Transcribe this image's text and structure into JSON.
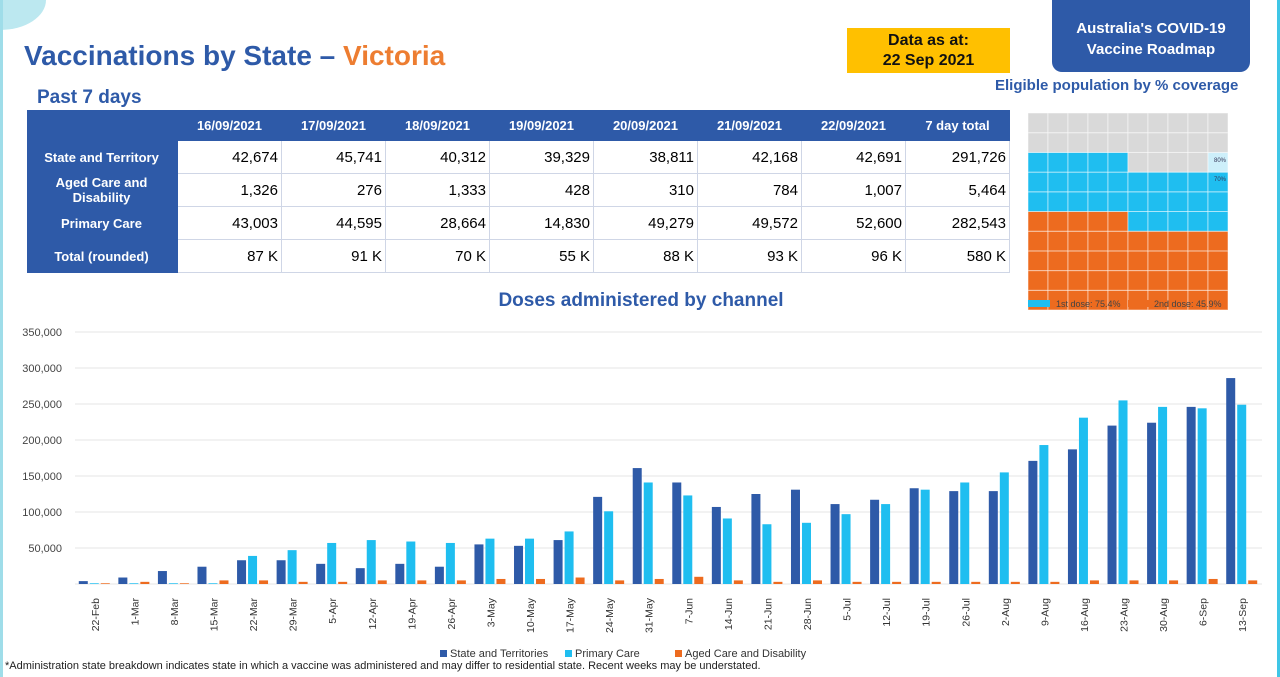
{
  "header": {
    "title_prefix": "Vaccinations by State – ",
    "title_state": "Victoria",
    "subtitle": "Past 7 days",
    "data_as_at_label": "Data as at:",
    "data_as_at_date": "22 Sep 2021",
    "roadmap_line1": "Australia's COVID-19",
    "roadmap_line2": "Vaccine Roadmap"
  },
  "table": {
    "columns": [
      "",
      "16/09/2021",
      "17/09/2021",
      "18/09/2021",
      "19/09/2021",
      "20/09/2021",
      "21/09/2021",
      "22/09/2021",
      "7 day total"
    ],
    "rows": [
      {
        "label": "State and Territory",
        "values": [
          "42,674",
          "45,741",
          "40,312",
          "39,329",
          "38,811",
          "42,168",
          "42,691",
          "291,726"
        ]
      },
      {
        "label": "Aged Care and Disability",
        "values": [
          "1,326",
          "276",
          "1,333",
          "428",
          "310",
          "784",
          "1,007",
          "5,464"
        ]
      },
      {
        "label": "Primary Care",
        "values": [
          "43,003",
          "44,595",
          "28,664",
          "14,830",
          "49,279",
          "49,572",
          "52,600",
          "282,543"
        ]
      },
      {
        "label": "Total (rounded)",
        "values": [
          "87 K",
          "91 K",
          "70 K",
          "55 K",
          "88 K",
          "93 K",
          "96 K",
          "580 K"
        ]
      }
    ]
  },
  "waffle": {
    "title": "Eligible population by % coverage",
    "first_dose_pct": 75.4,
    "second_dose_pct": 45.9,
    "legend": [
      "1st dose: 75.4%",
      "2nd dose: 45.9%"
    ],
    "markers": [
      "80%",
      "70%"
    ],
    "colors": {
      "first": "#1FBEF0",
      "second": "#ED6B1F",
      "empty": "#D9D9D9",
      "marker": "#CDEFFA"
    }
  },
  "chart_data": {
    "type": "bar",
    "title": "Doses administered by channel",
    "xlabel": "",
    "ylabel": "",
    "ylim": [
      0,
      350000
    ],
    "yticks": [
      "",
      "50,000",
      "100,000",
      "150,000",
      "200,000",
      "250,000",
      "300,000",
      "350,000"
    ],
    "grid": true,
    "legend_position": "bottom",
    "categories": [
      "22-Feb",
      "1-Mar",
      "8-Mar",
      "15-Mar",
      "22-Mar",
      "29-Mar",
      "5-Apr",
      "12-Apr",
      "19-Apr",
      "26-Apr",
      "3-May",
      "10-May",
      "17-May",
      "24-May",
      "31-May",
      "7-Jun",
      "14-Jun",
      "21-Jun",
      "28-Jun",
      "5-Jul",
      "12-Jul",
      "19-Jul",
      "26-Jul",
      "2-Aug",
      "9-Aug",
      "16-Aug",
      "23-Aug",
      "30-Aug",
      "6-Sep",
      "13-Sep"
    ],
    "series": [
      {
        "name": "State and Territories",
        "color": "#2E5AA8",
        "values": [
          4000,
          9000,
          18000,
          24000,
          33000,
          33000,
          28000,
          22000,
          28000,
          24000,
          55000,
          53000,
          61000,
          121000,
          161000,
          141000,
          107000,
          125000,
          131000,
          111000,
          117000,
          133000,
          129000,
          129000,
          171000,
          187000,
          220000,
          224000,
          246000,
          286000
        ]
      },
      {
        "name": "Primary Care",
        "color": "#1FBEF0",
        "values": [
          1000,
          1000,
          1000,
          1000,
          39000,
          47000,
          57000,
          61000,
          59000,
          57000,
          63000,
          63000,
          73000,
          101000,
          141000,
          123000,
          91000,
          83000,
          85000,
          97000,
          111000,
          131000,
          141000,
          155000,
          193000,
          231000,
          255000,
          246000,
          244000,
          249000
        ]
      },
      {
        "name": "Aged Care and Disability",
        "color": "#ED6B1F",
        "values": [
          1000,
          3000,
          1000,
          5000,
          5000,
          3000,
          3000,
          5000,
          5000,
          5000,
          7000,
          7000,
          9000,
          5000,
          7000,
          10000,
          5000,
          3000,
          5000,
          3000,
          3000,
          3000,
          3000,
          3000,
          3000,
          5000,
          5000,
          5000,
          7000,
          5000
        ]
      }
    ]
  },
  "footer": "*Administration state breakdown indicates state in which a vaccine was administered and may differ to residential state. Recent weeks may be understated."
}
